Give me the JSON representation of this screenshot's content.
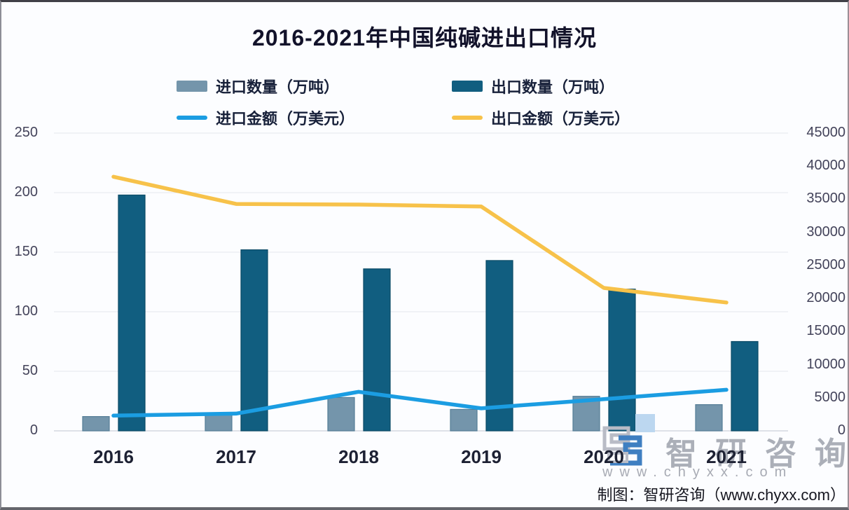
{
  "chart_data": {
    "type": "bar+line-combo",
    "title": "2016-2021年中国纯碱进出口情况",
    "categories": [
      "2016",
      "2017",
      "2018",
      "2019",
      "2020",
      "2021"
    ],
    "series": [
      {
        "name": "进口数量（万吨）",
        "type": "bar",
        "axis": "left",
        "color": "#7495ab",
        "edge": "#557e97",
        "values": [
          12,
          14,
          28,
          18,
          29,
          22
        ]
      },
      {
        "name": "出口数量（万吨）",
        "type": "bar",
        "axis": "left",
        "color": "#115e80",
        "edge": "#0b4a66",
        "values": [
          198,
          152,
          136,
          143,
          119,
          75
        ]
      },
      {
        "name": "进口金额（万美元）",
        "type": "line",
        "axis": "right",
        "color": "#1b9de2",
        "values": [
          2300,
          2600,
          5900,
          3400,
          4800,
          6200
        ]
      },
      {
        "name": "出口金额（万美元）",
        "type": "line",
        "axis": "right",
        "color": "#f7c24a",
        "values": [
          38400,
          34300,
          34200,
          33900,
          21600,
          19400
        ]
      }
    ],
    "left_axis": {
      "min": 0,
      "max": 250,
      "ticks": [
        0,
        50,
        100,
        150,
        200,
        250
      ]
    },
    "right_axis": {
      "min": 0,
      "max": 45000,
      "ticks": [
        0,
        5000,
        10000,
        15000,
        20000,
        25000,
        30000,
        35000,
        40000,
        45000
      ]
    },
    "grid": true,
    "legend_position": "top"
  },
  "watermark": {
    "brand_text": "智研咨询",
    "url_text": "www.chyxx.com",
    "logo_light_blue": "#bcd7f0",
    "logo_blue": "#3f7fc1",
    "logo_gray": "#b9bcc6"
  },
  "footer": {
    "credit": "制图：智研咨询（www.chyxx.com）"
  },
  "style_colors": {
    "gridline": "#e3e6ed",
    "axis_line": "#d4d8e0",
    "background": "#fcfdff"
  }
}
